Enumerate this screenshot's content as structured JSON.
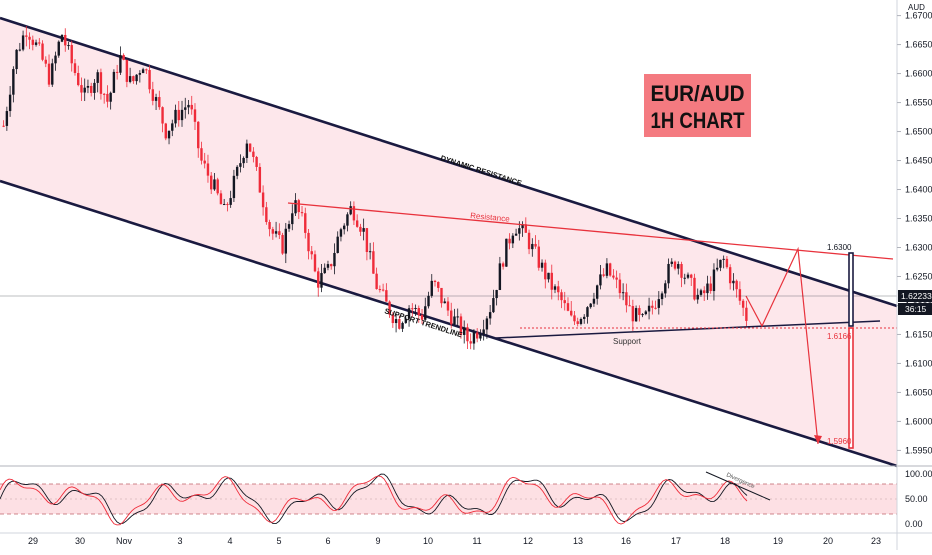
{
  "symbol_badge": {
    "line1": "EUR/AUD",
    "line2": "1H CHART",
    "bg": "#f47a80",
    "fg": "#111111"
  },
  "currency": "AUD",
  "price": {
    "last": "1.62233",
    "countdown": "36:15",
    "line_color": "#131722"
  },
  "labels": {
    "dynamic_resistance": "DYNAMIC RESISTANCE",
    "support_trendline": "SUPPORT TRENDLINE",
    "resistance": "Resistance",
    "support": "Support",
    "target_high": "1.6300",
    "level_support": "1.6166",
    "target_low": "1.5960",
    "divergence": "Divergence"
  },
  "colors": {
    "bull": "#131722",
    "bear": "#ef2c3a",
    "channel": "#1a1a40",
    "zone": "#fde6ea",
    "red_line": "#e8323c",
    "osc_band": "#fde0e4"
  },
  "chart_data": {
    "type": "candlestick",
    "title": "EUR/AUD 1H CHART",
    "y_axis": {
      "min": 1.593,
      "max": 1.672,
      "ticks": [
        1.595,
        1.6,
        1.605,
        1.61,
        1.615,
        1.62,
        1.625,
        1.63,
        1.635,
        1.64,
        1.645,
        1.65,
        1.655,
        1.66,
        1.665,
        1.67
      ]
    },
    "x_axis": {
      "tick_labels": [
        "29",
        "30",
        "Nov",
        "3",
        "4",
        "5",
        "6",
        "9",
        "10",
        "11",
        "12",
        "13",
        "16",
        "17",
        "18",
        "19",
        "20",
        "23"
      ]
    },
    "price_path": [
      1.651,
      1.663,
      1.668,
      1.664,
      1.659,
      1.667,
      1.661,
      1.656,
      1.66,
      1.655,
      1.663,
      1.658,
      1.662,
      1.656,
      1.65,
      1.653,
      1.655,
      1.645,
      1.641,
      1.636,
      1.642,
      1.649,
      1.641,
      1.633,
      1.63,
      1.638,
      1.633,
      1.624,
      1.626,
      1.633,
      1.637,
      1.633,
      1.624,
      1.62,
      1.617,
      1.62,
      1.618,
      1.624,
      1.62,
      1.617,
      1.614,
      1.616,
      1.62,
      1.628,
      1.634,
      1.632,
      1.628,
      1.624,
      1.621,
      1.617,
      1.619,
      1.623,
      1.626,
      1.623,
      1.619,
      1.617,
      1.62,
      1.625,
      1.628,
      1.624,
      1.621,
      1.624,
      1.628,
      1.623,
      1.618
    ],
    "levels": {
      "resistance_target": 1.63,
      "support": 1.6166,
      "target_low": 1.596,
      "current": 1.62233
    },
    "oscillator": {
      "name": "Stochastic",
      "ticks": [
        0,
        50,
        100
      ],
      "band": [
        20,
        80
      ],
      "labels": [
        "100.00",
        "50.00",
        "0.00"
      ]
    }
  }
}
